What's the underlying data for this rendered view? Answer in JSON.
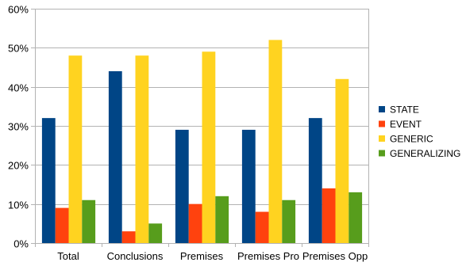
{
  "chart_data": {
    "type": "bar",
    "title": "",
    "xlabel": "",
    "ylabel": "",
    "categories": [
      "Total",
      "Conclusions",
      "Premises",
      "Premises Pro",
      "Premises Opp"
    ],
    "series": [
      {
        "name": "STATE",
        "color": "#004586",
        "values": [
          32,
          44,
          29,
          29,
          32
        ]
      },
      {
        "name": "EVENT",
        "color": "#ff420e",
        "values": [
          9,
          3,
          10,
          8,
          14
        ]
      },
      {
        "name": "GENERIC",
        "color": "#ffd320",
        "values": [
          48,
          48,
          49,
          52,
          42
        ]
      },
      {
        "name": "GENERALIZING",
        "color": "#579d1c",
        "values": [
          11,
          5,
          12,
          11,
          13
        ]
      }
    ],
    "ylim": [
      0,
      60
    ],
    "yticks": [
      0,
      10,
      20,
      30,
      40,
      50,
      60
    ],
    "ytick_labels": [
      "0%",
      "10%",
      "20%",
      "30%",
      "40%",
      "50%",
      "60%"
    ],
    "grid": true,
    "legend_position": "right"
  }
}
